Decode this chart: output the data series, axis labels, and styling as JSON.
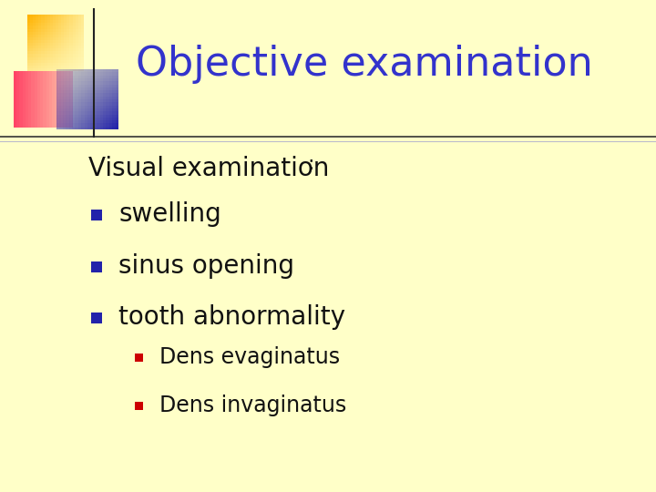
{
  "background_color": "#FFFFC8",
  "title": "Objective examination",
  "title_color": "#3333CC",
  "title_fontsize": 32,
  "body_text_color": "#111111",
  "body_fontsize": 20,
  "sub_fontsize": 17,
  "bullet_color_main": "#2222AA",
  "bullet_color_sub": "#CC0000",
  "visual_exam_label": "Visual examination",
  "visual_exam_colon": ":",
  "main_bullets": [
    "swelling",
    "sinus opening",
    "tooth abnormality"
  ],
  "sub_bullets": [
    "Dens evaginatus",
    "Dens invaginatus"
  ],
  "logo_yellow_color": "#FFB300",
  "logo_pink_color": "#FF4466",
  "logo_blue_color": "#2222AA",
  "line_color_dark": "#333333",
  "line_color_light": "#BBBBCC"
}
